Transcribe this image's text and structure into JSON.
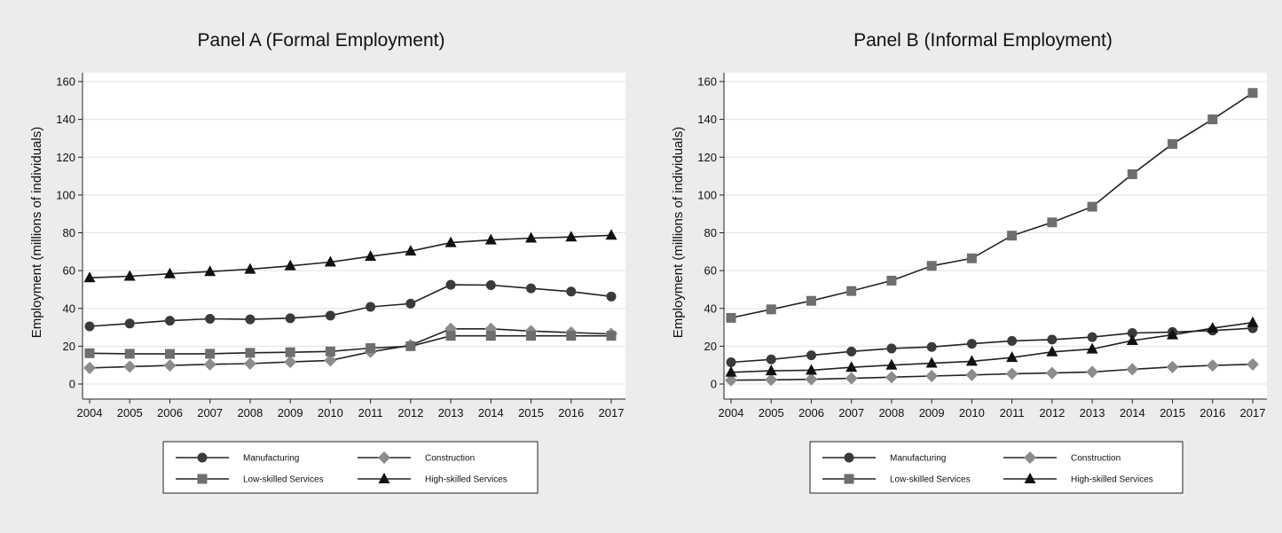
{
  "chart_data": [
    {
      "type": "line",
      "title": "Panel A (Formal Employment)",
      "xlabel": "",
      "ylabel": "Employment (millions of individuals)",
      "x": [
        2004,
        2005,
        2006,
        2007,
        2008,
        2009,
        2010,
        2011,
        2012,
        2013,
        2014,
        2015,
        2016,
        2017
      ],
      "ylim": [
        0,
        160
      ],
      "yticks": [
        0,
        20,
        40,
        60,
        80,
        100,
        120,
        140,
        160
      ],
      "grid": true,
      "legend_position": "bottom",
      "series": [
        {
          "name": "Manufacturing",
          "marker": "circle",
          "color": "#3a3a3a",
          "values": [
            30.5,
            32,
            33.5,
            34.5,
            34.2,
            34.8,
            36.2,
            40.8,
            42.5,
            52.5,
            52.3,
            50.6,
            48.9,
            46.3
          ]
        },
        {
          "name": "Construction",
          "marker": "diamond",
          "color": "#8c8c8c",
          "values": [
            8.5,
            9.2,
            9.8,
            10.4,
            10.8,
            11.7,
            12.5,
            17,
            20.5,
            29.2,
            29.2,
            28,
            27.2,
            26.5
          ]
        },
        {
          "name": "Low-skilled Services",
          "marker": "square",
          "color": "#6e6e6e",
          "values": [
            16.3,
            16,
            15.9,
            16,
            16.5,
            16.8,
            17.2,
            19,
            20,
            25.5,
            25.5,
            25.5,
            25.5,
            25.5
          ]
        },
        {
          "name": "High-skilled Services",
          "marker": "triangle",
          "color": "#111111",
          "values": [
            56.2,
            57,
            58.3,
            59.5,
            60.7,
            62.5,
            64.5,
            67.5,
            70.3,
            74.8,
            76.2,
            77.2,
            77.8,
            78.7
          ]
        }
      ]
    },
    {
      "type": "line",
      "title": "Panel B (Informal Employment)",
      "xlabel": "",
      "ylabel": "Employment (millions of individuals)",
      "x": [
        2004,
        2005,
        2006,
        2007,
        2008,
        2009,
        2010,
        2011,
        2012,
        2013,
        2014,
        2015,
        2016,
        2017
      ],
      "ylim": [
        0,
        160
      ],
      "yticks": [
        0,
        20,
        40,
        60,
        80,
        100,
        120,
        140,
        160
      ],
      "grid": true,
      "legend_position": "bottom",
      "series": [
        {
          "name": "Manufacturing",
          "marker": "circle",
          "color": "#3a3a3a",
          "values": [
            11.5,
            13,
            15.2,
            17.2,
            18.8,
            19.6,
            21.3,
            22.8,
            23.5,
            24.8,
            27,
            27.5,
            28.3,
            29.5
          ]
        },
        {
          "name": "Construction",
          "marker": "diamond",
          "color": "#8c8c8c",
          "values": [
            2,
            2.2,
            2.5,
            3,
            3.6,
            4.2,
            4.8,
            5.4,
            5.8,
            6.4,
            7.8,
            9,
            9.8,
            10.4
          ]
        },
        {
          "name": "Low-skilled Services",
          "marker": "square",
          "color": "#6e6e6e",
          "values": [
            35,
            39.5,
            44,
            49.2,
            54.7,
            62.5,
            66.5,
            78.5,
            85.5,
            93.8,
            111,
            127,
            140,
            154
          ]
        },
        {
          "name": "High-skilled Services",
          "marker": "triangle",
          "color": "#111111",
          "values": [
            6.2,
            7,
            7.3,
            8.8,
            10,
            11,
            12,
            14,
            17,
            18.5,
            23,
            26,
            29.5,
            32.5
          ]
        }
      ]
    }
  ]
}
